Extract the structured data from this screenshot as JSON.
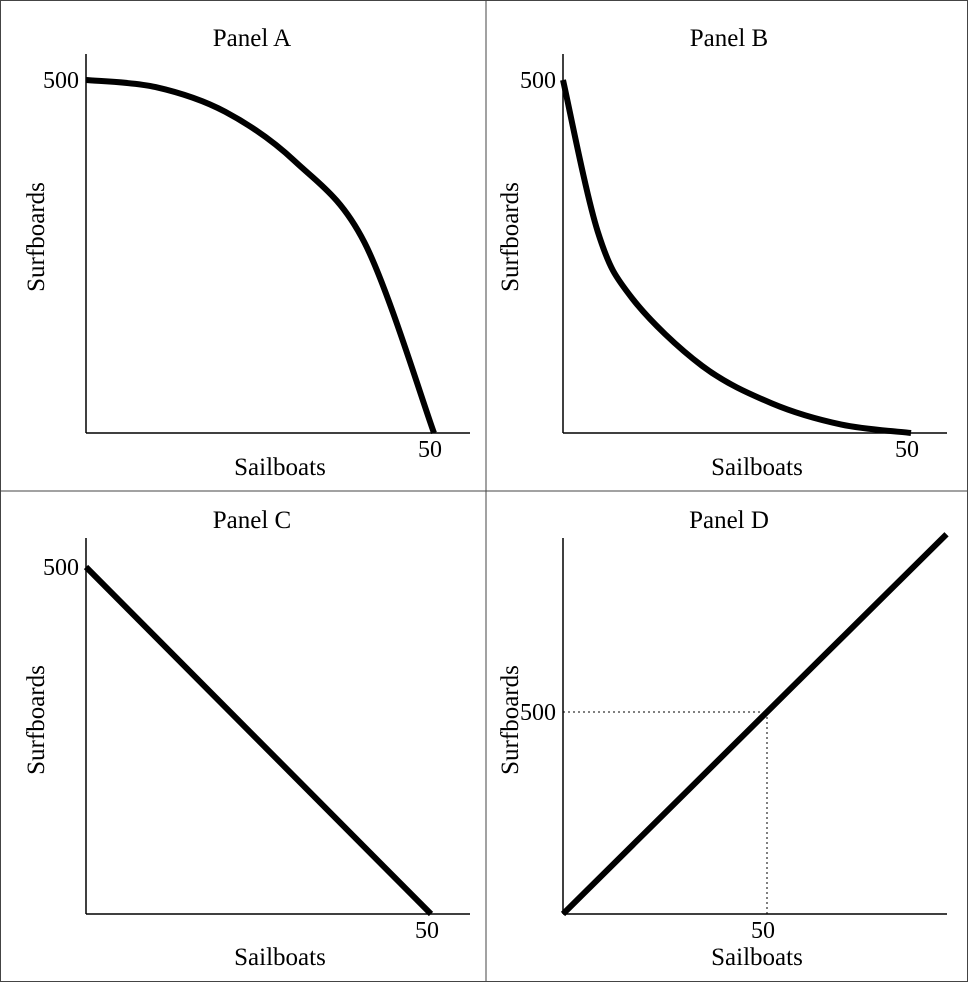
{
  "chart_data": [
    {
      "type": "line",
      "title": "Panel A",
      "xlabel": "Sailboats",
      "ylabel": "Surfboards",
      "x_tick_labels": [
        "50"
      ],
      "y_tick_labels": [
        "500"
      ],
      "xlim": [
        0,
        50
      ],
      "ylim": [
        0,
        500
      ],
      "curve": "concave (bowed outward)",
      "series": [
        {
          "x": [
            0,
            10,
            20,
            30,
            40,
            50
          ],
          "y": [
            500,
            490,
            455,
            385,
            270,
            0
          ]
        }
      ]
    },
    {
      "type": "line",
      "title": "Panel B",
      "xlabel": "Sailboats",
      "ylabel": "Surfboards",
      "x_tick_labels": [
        "50"
      ],
      "y_tick_labels": [
        "500"
      ],
      "xlim": [
        0,
        50
      ],
      "ylim": [
        0,
        500
      ],
      "curve": "convex (bowed inward)",
      "series": [
        {
          "x": [
            0,
            5,
            10,
            20,
            30,
            40,
            50
          ],
          "y": [
            500,
            285,
            190,
            95,
            42,
            12,
            0
          ]
        }
      ]
    },
    {
      "type": "line",
      "title": "Panel C",
      "xlabel": "Sailboats",
      "ylabel": "Surfboards",
      "x_tick_labels": [
        "50"
      ],
      "y_tick_labels": [
        "500"
      ],
      "xlim": [
        0,
        50
      ],
      "ylim": [
        0,
        500
      ],
      "curve": "linear",
      "series": [
        {
          "x": [
            0,
            50
          ],
          "y": [
            500,
            0
          ]
        }
      ]
    },
    {
      "type": "line",
      "title": "Panel D",
      "xlabel": "Sailboats",
      "ylabel": "Surfboards",
      "x_tick_labels": [
        "50"
      ],
      "y_tick_labels": [
        "500"
      ],
      "xlim": [
        0,
        100
      ],
      "ylim": [
        0,
        1000
      ],
      "curve": "linear (upward sloping)",
      "reference_point": {
        "x": 50,
        "y": 500,
        "style": "dotted guide lines"
      },
      "series": [
        {
          "x": [
            0,
            50,
            94
          ],
          "y": [
            0,
            500,
            940
          ]
        }
      ]
    }
  ]
}
